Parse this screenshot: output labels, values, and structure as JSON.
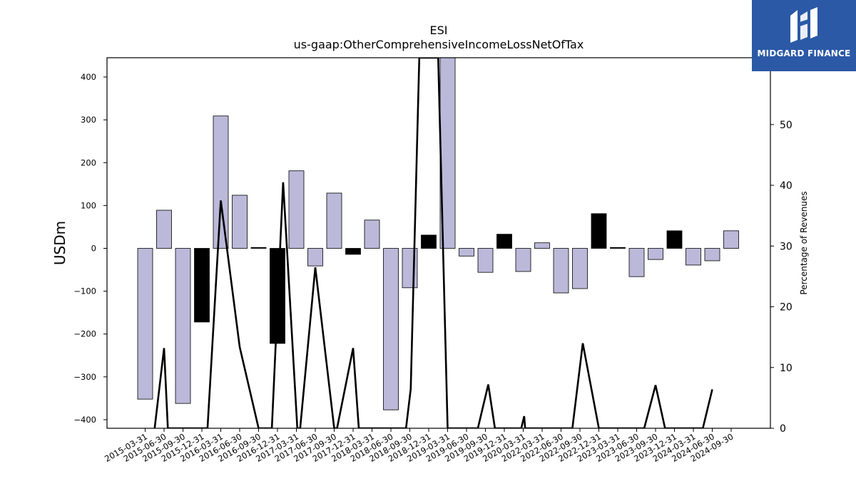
{
  "chart_data": {
    "type": "bar",
    "title": "ESI",
    "subtitle": "us-gaap:OtherComprehensiveIncomeLossNetOfTax",
    "ylabel": "USDm",
    "ylabel_right": "Percentage of Revenues",
    "ylim": [
      -420,
      445
    ],
    "ylim_right": [
      0,
      61
    ],
    "yticks": [
      -400,
      -300,
      -200,
      -100,
      0,
      100,
      200,
      300,
      400
    ],
    "yticks_right": [
      0,
      10,
      20,
      30,
      40,
      50
    ],
    "categories": [
      "2015-03-31",
      "2015-06-30",
      "2015-09-30",
      "2015-12-31",
      "2016-03-31",
      "2016-06-30",
      "2016-09-30",
      "2016-12-31",
      "2017-03-31",
      "2017-06-30",
      "2017-09-30",
      "2017-12-31",
      "2018-03-31",
      "2018-06-30",
      "2018-09-30",
      "2018-12-31",
      "2019-03-31",
      "2019-06-30",
      "2019-09-30",
      "2019-12-31",
      "2020-03-31",
      "2022-03-31",
      "2022-06-30",
      "2022-09-30",
      "2022-12-31",
      "2023-03-31",
      "2023-06-30",
      "2023-09-30",
      "2023-12-31",
      "2024-03-31",
      "2024-06-30",
      "2024-09-30"
    ],
    "series": [
      {
        "kind": "bar",
        "values": [
          -352,
          89,
          -362,
          -172,
          309,
          124,
          2,
          -222,
          181,
          -41,
          129,
          -14,
          66,
          -377,
          -92,
          31,
          445,
          -18,
          -56,
          33,
          -54,
          13,
          -104,
          -94,
          81,
          2,
          -66,
          -26,
          41,
          -39,
          -29,
          41
        ],
        "fill": [
          "#bcb8d9",
          "#bcb8d9",
          "#bcb8d9",
          "#000000",
          "#bcb8d9",
          "#bcb8d9",
          "#000000",
          "#000000",
          "#bcb8d9",
          "#bcb8d9",
          "#bcb8d9",
          "#000000",
          "#bcb8d9",
          "#bcb8d9",
          "#bcb8d9",
          "#000000",
          "#bcb8d9",
          "#bcb8d9",
          "#bcb8d9",
          "#000000",
          "#bcb8d9",
          "#bcb8d9",
          "#bcb8d9",
          "#bcb8d9",
          "#000000",
          "#000000",
          "#bcb8d9",
          "#bcb8d9",
          "#000000",
          "#bcb8d9",
          "#bcb8d9",
          "#bcb8d9"
        ]
      },
      {
        "kind": "line",
        "axis": "right",
        "points": [
          [
            0.5,
            0
          ],
          [
            1,
            13.2
          ],
          [
            1.2,
            0
          ],
          [
            3.3,
            0
          ],
          [
            4,
            37.5
          ],
          [
            5,
            13.4
          ],
          [
            6,
            0
          ],
          [
            6.7,
            0
          ],
          [
            7.3,
            40.5
          ],
          [
            8.05,
            0
          ],
          [
            8.2,
            0
          ],
          [
            9,
            26.5
          ],
          [
            10,
            0
          ],
          [
            10.15,
            0
          ],
          [
            11,
            13.2
          ],
          [
            11.3,
            0
          ],
          [
            13.8,
            0
          ],
          [
            14.05,
            6.5
          ],
          [
            14.5,
            61
          ],
          [
            15.5,
            61
          ],
          [
            16,
            0
          ],
          [
            17.6,
            0
          ],
          [
            18.15,
            7.2
          ],
          [
            18.5,
            0
          ],
          [
            19.9,
            0
          ],
          [
            20.05,
            2
          ],
          [
            20.1,
            0
          ],
          [
            22.6,
            0
          ],
          [
            23.15,
            14
          ],
          [
            24,
            0
          ],
          [
            26.4,
            0
          ],
          [
            27,
            7.1
          ],
          [
            27.5,
            0
          ],
          [
            29.5,
            0
          ],
          [
            30,
            6.4
          ]
        ],
        "color": "#000000"
      }
    ],
    "grid": false,
    "legend": "none"
  },
  "logo": {
    "text": "MIDGARD FINANCE",
    "bg_color": "#2b59a6"
  }
}
